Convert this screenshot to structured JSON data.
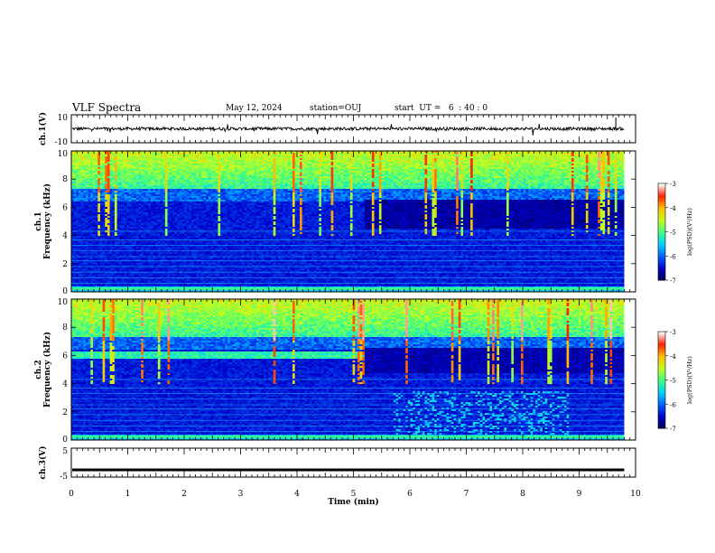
{
  "header": {
    "title": "VLF Spectra",
    "date": "May 12, 2024",
    "station": "station=OUJ",
    "start": "start  UT =   6  : 40 : 0"
  },
  "colors": {
    "colormap": [
      "#00004a",
      "#0000c8",
      "#0060ff",
      "#00d0ff",
      "#40ff80",
      "#c0ff20",
      "#ffc000",
      "#ff2000",
      "#ffffff"
    ]
  },
  "chart_data": [
    {
      "type": "line",
      "panel": "waveform-ch1",
      "ylabel": "ch.1(V)",
      "ylim": [
        -10,
        10
      ],
      "y_ticks": [
        "10",
        "-10"
      ],
      "mean_value": 0,
      "xlim": [
        0,
        10
      ]
    },
    {
      "type": "heatmap",
      "panel": "spectrogram-ch1",
      "ylabel_lines": [
        "ch.1",
        "Frequency (kHz)"
      ],
      "ylim": [
        0,
        10
      ],
      "y_ticks": [
        "0",
        "2",
        "4",
        "6",
        "8",
        "10"
      ],
      "xlim": [
        0,
        10
      ],
      "data_end_min": 9.8,
      "colorbar": {
        "label": "log(PSD)(V²/Hz)",
        "range": [
          -7,
          -3
        ],
        "ticks": [
          "-3",
          "-4",
          "-5",
          "-6",
          "-7"
        ]
      },
      "features": {
        "band_upper_khz": 6.5,
        "band_switch_min": 5.2,
        "band_upper_khz_after": 7.0
      }
    },
    {
      "type": "heatmap",
      "panel": "spectrogram-ch2",
      "ylabel_lines": [
        "ch.2",
        "Frequency (kHz)"
      ],
      "ylim": [
        0,
        10
      ],
      "y_ticks": [
        "0",
        "2",
        "4",
        "6",
        "8",
        "10"
      ],
      "xlim": [
        0,
        10
      ],
      "data_end_min": 9.8,
      "colorbar": {
        "label": "log(PSD)(V²/Hz)",
        "range": [
          -7,
          -3
        ],
        "ticks": [
          "-3",
          "-4",
          "-5",
          "-6",
          "-7"
        ]
      },
      "features": {
        "band_khz": 6.0,
        "band_end_min": 5.2
      }
    },
    {
      "type": "line",
      "panel": "waveform-ch3",
      "ylabel": "ch.3(V)",
      "ylim": [
        -5,
        5
      ],
      "y_ticks": [
        "5",
        "-5"
      ],
      "value": -2.5,
      "xlim": [
        0,
        10
      ],
      "xlabel": "Time (min)",
      "x_ticks": [
        "0",
        "1",
        "2",
        "3",
        "4",
        "5",
        "6",
        "7",
        "8",
        "9",
        "10"
      ]
    }
  ]
}
